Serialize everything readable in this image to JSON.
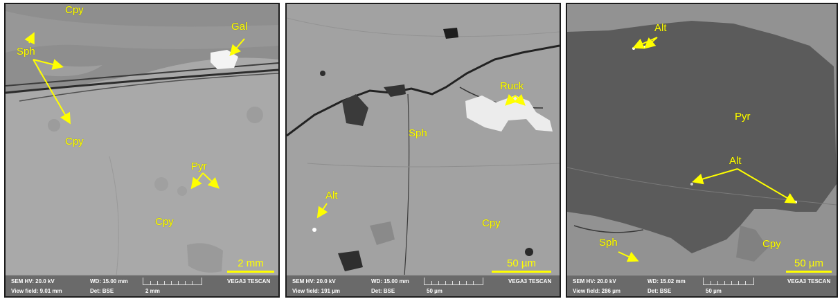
{
  "panels": [
    {
      "labels": {
        "cpy_top": "Cpy",
        "gal": "Gal",
        "sph": "Sph",
        "cpy_mid": "Cpy",
        "pyr": "Pyr",
        "cpy_low": "Cpy"
      },
      "scale": "2 mm",
      "info": {
        "hv": "SEM HV: 20.0 kV",
        "wd": "WD: 15.00 mm",
        "brand": "VEGA3 TESCAN",
        "vf": "View field: 9.01 mm",
        "det": "Det: BSE",
        "unit": "2 mm"
      }
    },
    {
      "labels": {
        "ruck": "Ruck",
        "sph": "Sph",
        "alt": "Alt",
        "cpy": "Cpy"
      },
      "scale": "50 µm",
      "info": {
        "hv": "SEM HV: 20.0 kV",
        "wd": "WD: 15.00 mm",
        "brand": "VEGA3 TESCAN",
        "vf": "View field: 191 µm",
        "det": "Det: BSE",
        "unit": "50 µm"
      }
    },
    {
      "labels": {
        "alt_top": "Alt",
        "pyr": "Pyr",
        "alt_mid": "Alt",
        "sph": "Sph",
        "cpy": "Cpy"
      },
      "scale": "50 µm",
      "info": {
        "hv": "SEM HV: 20.0 kV",
        "wd": "WD: 15.02 mm",
        "brand": "VEGA3 TESCAN",
        "vf": "View field: 286 µm",
        "det": "Det: BSE",
        "unit": "50 µm"
      }
    }
  ],
  "colors": {
    "annotation": "#ffff00",
    "infobar": "#6a6a6a"
  }
}
